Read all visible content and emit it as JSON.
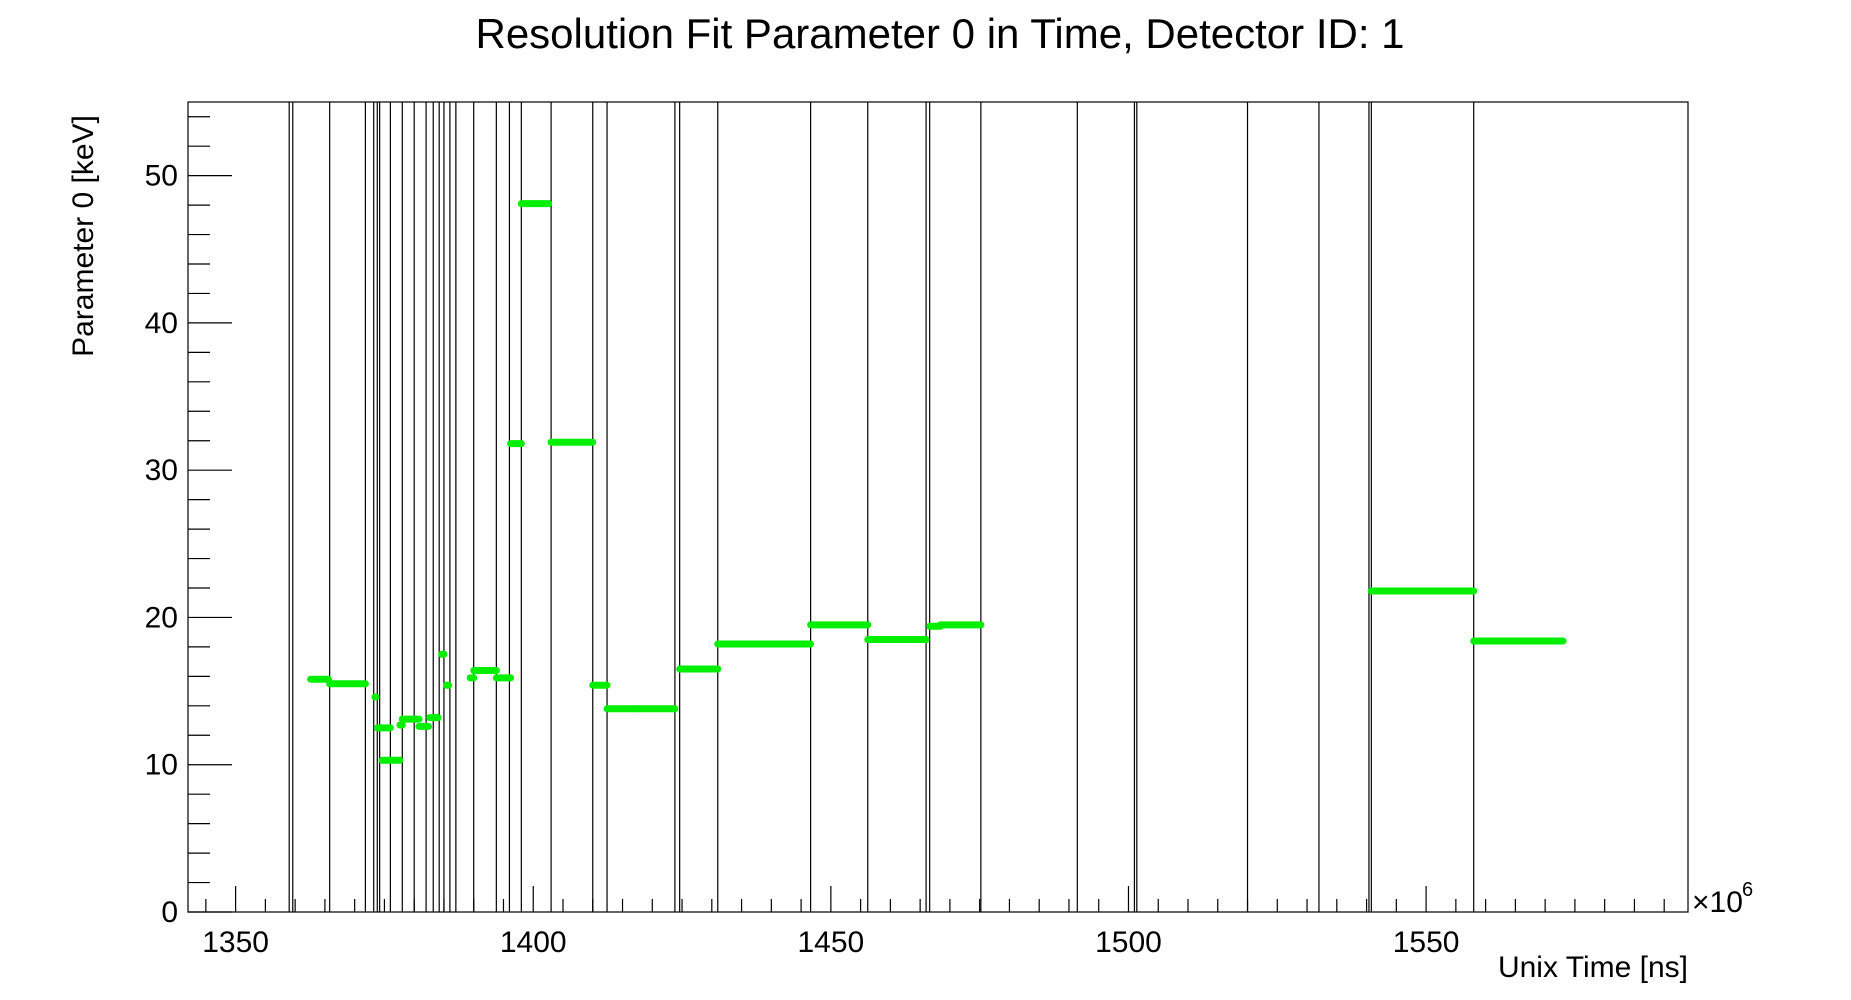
{
  "chart_data": {
    "type": "scatter",
    "title": "Resolution Fit Parameter 0 in Time, Detector ID: 1",
    "xlabel": "Unix Time [ns]",
    "ylabel": "Parameter 0 [keV]",
    "x_multiplier": "×10",
    "x_multiplier_exp": "6",
    "xlim": [
      1342,
      1594
    ],
    "ylim": [
      0,
      55
    ],
    "x_ticks": [
      1350,
      1400,
      1450,
      1500,
      1550
    ],
    "x_tick_labels": [
      "1350",
      "1400",
      "1450",
      "1500",
      "1550"
    ],
    "y_ticks": [
      0,
      10,
      20,
      30,
      40,
      50
    ],
    "y_tick_labels": [
      "0",
      "10",
      "20",
      "30",
      "40",
      "50"
    ],
    "grid": false,
    "marker_color": "#00ee00",
    "line_color": "#000000",
    "vertical_lines": [
      1359.0,
      1359.6,
      1365.8,
      1371.8,
      1373.2,
      1373.8,
      1374.2,
      1376.0,
      1378.0,
      1380.0,
      1382.0,
      1383.2,
      1384.2,
      1385.0,
      1386.0,
      1387.0,
      1390.0,
      1393.8,
      1396.0,
      1398.0,
      1403.0,
      1410.0,
      1412.4,
      1423.8,
      1424.6,
      1431.0,
      1446.6,
      1456.2,
      1466.0,
      1466.6,
      1475.2,
      1491.4,
      1501.0,
      1501.4,
      1520.0,
      1532.0,
      1540.4,
      1540.8,
      1558.0
    ],
    "segments": [
      {
        "x0": 1362.6,
        "x1": 1365.6,
        "y": 15.8
      },
      {
        "x0": 1365.8,
        "x1": 1371.8,
        "y": 15.5
      },
      {
        "x0": 1373.4,
        "x1": 1373.6,
        "y": 14.6
      },
      {
        "x0": 1373.8,
        "x1": 1376.0,
        "y": 12.5
      },
      {
        "x0": 1374.6,
        "x1": 1377.6,
        "y": 10.3
      },
      {
        "x0": 1377.6,
        "x1": 1378.0,
        "y": 12.7
      },
      {
        "x0": 1378.0,
        "x1": 1380.8,
        "y": 13.1
      },
      {
        "x0": 1380.8,
        "x1": 1382.4,
        "y": 12.6
      },
      {
        "x0": 1382.6,
        "x1": 1384.0,
        "y": 13.2
      },
      {
        "x0": 1384.6,
        "x1": 1385.0,
        "y": 17.5
      },
      {
        "x0": 1385.4,
        "x1": 1385.8,
        "y": 15.4
      },
      {
        "x0": 1389.4,
        "x1": 1390.0,
        "y": 15.9
      },
      {
        "x0": 1390.0,
        "x1": 1393.8,
        "y": 16.4
      },
      {
        "x0": 1393.8,
        "x1": 1396.2,
        "y": 15.9
      },
      {
        "x0": 1396.2,
        "x1": 1398.0,
        "y": 31.8
      },
      {
        "x0": 1398.0,
        "x1": 1402.6,
        "y": 48.1
      },
      {
        "x0": 1403.0,
        "x1": 1410.0,
        "y": 31.9
      },
      {
        "x0": 1410.0,
        "x1": 1412.4,
        "y": 15.4
      },
      {
        "x0": 1412.4,
        "x1": 1417.2,
        "y": 13.8
      },
      {
        "x0": 1417.2,
        "x1": 1423.8,
        "y": 13.8
      },
      {
        "x0": 1424.6,
        "x1": 1431.0,
        "y": 16.5
      },
      {
        "x0": 1431.0,
        "x1": 1446.6,
        "y": 18.2
      },
      {
        "x0": 1446.6,
        "x1": 1456.2,
        "y": 19.5
      },
      {
        "x0": 1456.2,
        "x1": 1466.0,
        "y": 18.5
      },
      {
        "x0": 1466.6,
        "x1": 1468.4,
        "y": 19.4
      },
      {
        "x0": 1468.4,
        "x1": 1475.2,
        "y": 19.5
      },
      {
        "x0": 1540.8,
        "x1": 1558.0,
        "y": 21.8
      },
      {
        "x0": 1558.0,
        "x1": 1573.0,
        "y": 18.4
      }
    ]
  }
}
